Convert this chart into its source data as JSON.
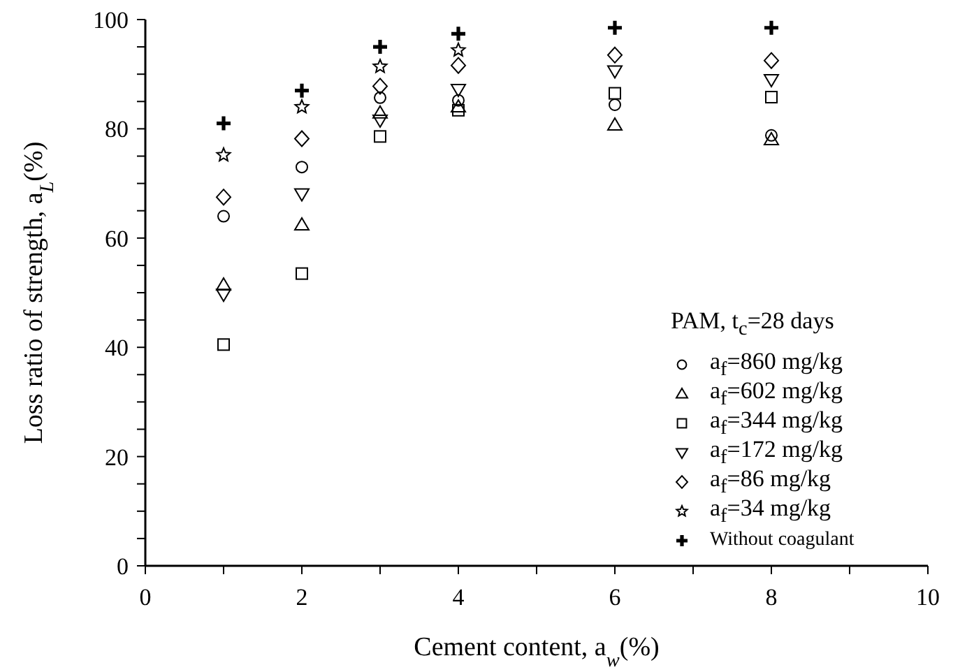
{
  "chart_data": {
    "type": "scatter",
    "xlabel": "Cement content, a$_{w}$(%)",
    "ylabel": "Loss ratio of strength, a$_{L}$(%)",
    "legend_title": "PAM, t$_{c}$=28 days",
    "legend": "bottom right",
    "grid": false,
    "x": [
      1,
      2,
      3,
      4,
      6,
      8
    ],
    "xlim": [
      0,
      10
    ],
    "xticks": [
      0,
      {
        "value": 1,
        "label": null
      },
      2,
      {
        "value": 3,
        "label": null
      },
      4,
      {
        "value": 5,
        "label": null
      },
      6,
      {
        "value": 7,
        "label": null
      },
      8,
      {
        "value": 9,
        "label": null
      },
      10
    ],
    "ylim": [
      0,
      100
    ],
    "yticks": [
      0,
      {
        "value": 5,
        "label": null
      },
      {
        "value": 10,
        "label": null
      },
      {
        "value": 15,
        "label": null
      },
      20,
      {
        "value": 25,
        "label": null
      },
      {
        "value": 30,
        "label": null
      },
      {
        "value": 35,
        "label": null
      },
      40,
      {
        "value": 45,
        "label": null
      },
      {
        "value": 50,
        "label": null
      },
      {
        "value": 55,
        "label": null
      },
      60,
      {
        "value": 65,
        "label": null
      },
      {
        "value": 70,
        "label": null
      },
      {
        "value": 75,
        "label": null
      },
      80,
      {
        "value": 85,
        "label": null
      },
      {
        "value": 90,
        "label": null
      },
      {
        "value": 95,
        "label": null
      },
      100
    ],
    "series": [
      {
        "name": "a$_{f}$=860 mg/kg",
        "color": "#000000",
        "marker": "circle",
        "values": [
          64,
          73,
          85.7,
          85.2,
          84.4,
          78.8
        ]
      },
      {
        "name": "a$_{f}$=602 mg/kg",
        "color": "#000000",
        "marker": "triangle",
        "values": [
          51.4,
          62.4,
          82.9,
          84,
          80.7,
          78
        ]
      },
      {
        "name": "a$_{f}$=344 mg/kg",
        "color": "#000000",
        "marker": "square",
        "values": [
          40.5,
          53.5,
          78.6,
          83.4,
          86.5,
          85.8
        ]
      },
      {
        "name": "a$_{f}$=172 mg/kg",
        "color": "#000000",
        "marker": "triangle-down",
        "values": [
          49.7,
          68.1,
          81.6,
          87.2,
          90.6,
          89
        ]
      },
      {
        "name": "a$_{f}$=86 mg/kg",
        "color": "#000000",
        "marker": "diamond",
        "values": [
          67.5,
          78.2,
          87.8,
          91.6,
          93.5,
          92.5
        ]
      },
      {
        "name": "a$_{f}$=34 mg/kg",
        "color": "#000000",
        "marker": "star",
        "values": [
          75.2,
          84,
          91.4,
          94.4,
          null,
          null
        ]
      },
      {
        "name": "Without coagulant",
        "color": "#000000",
        "marker": "cross",
        "values": [
          81,
          87,
          95,
          97.4,
          98.5,
          98.5
        ]
      }
    ]
  }
}
